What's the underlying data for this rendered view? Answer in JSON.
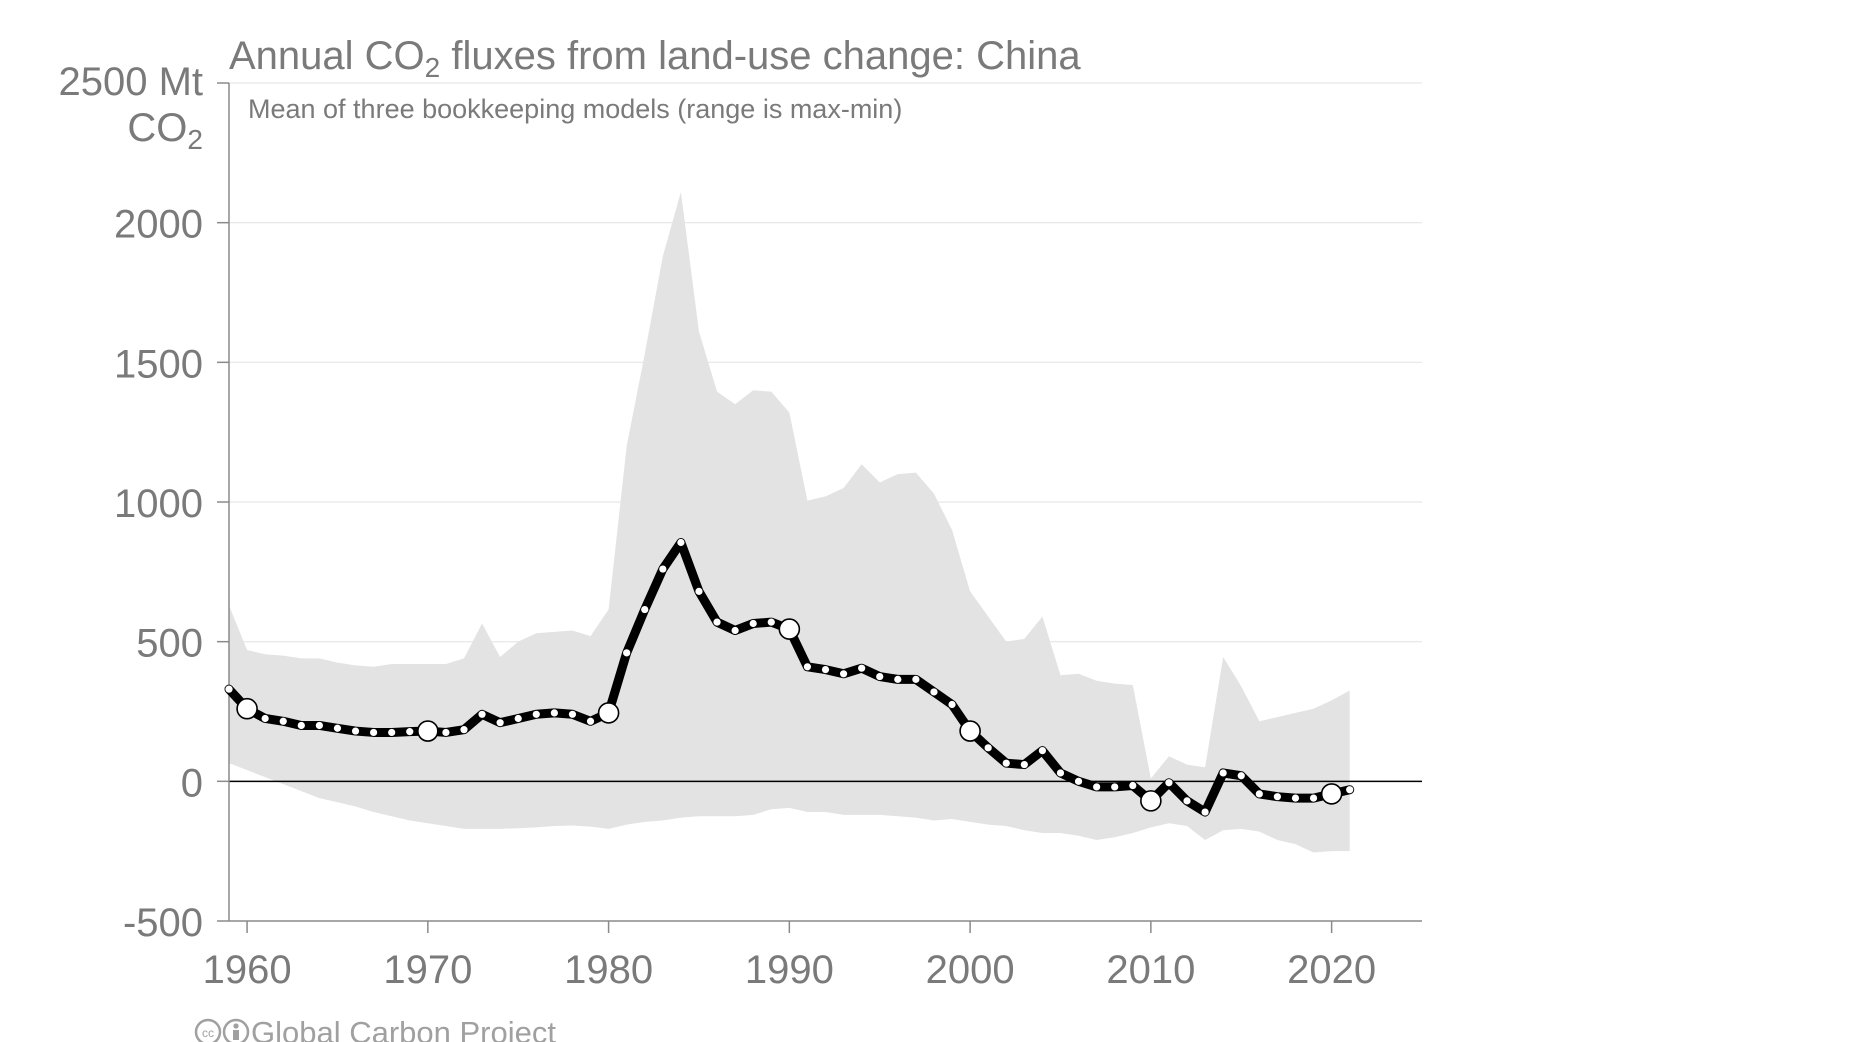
{
  "chart_data": {
    "type": "area",
    "title_before": "Annual CO",
    "title_sub": "2",
    "title_after": " fluxes from land-use change: China",
    "subtitle": "Mean of three bookkeeping models (range is max-min)",
    "ylabel_line1": "2500 Mt",
    "ylabel_line2": "CO",
    "ylabel_sub": "2",
    "xlim": [
      1959,
      2025
    ],
    "ylim": [
      -500,
      2500
    ],
    "yticks": [
      2000,
      1500,
      1000,
      500,
      0,
      -500
    ],
    "xticks": [
      1960,
      1970,
      1980,
      1990,
      2000,
      2010,
      2020
    ],
    "grid": true,
    "colors": {
      "mean": "#000000",
      "range": "#e3e3e3",
      "text": "#7a7a7a",
      "grid": "#e6e6e6"
    },
    "years": [
      1959,
      1960,
      1961,
      1962,
      1963,
      1964,
      1965,
      1966,
      1967,
      1968,
      1969,
      1970,
      1971,
      1972,
      1973,
      1974,
      1975,
      1976,
      1977,
      1978,
      1979,
      1980,
      1981,
      1982,
      1983,
      1984,
      1985,
      1986,
      1987,
      1988,
      1989,
      1990,
      1991,
      1992,
      1993,
      1994,
      1995,
      1996,
      1997,
      1998,
      1999,
      2000,
      2001,
      2002,
      2003,
      2004,
      2005,
      2006,
      2007,
      2008,
      2009,
      2010,
      2011,
      2012,
      2013,
      2014,
      2015,
      2016,
      2017,
      2018,
      2019,
      2020,
      2021
    ],
    "series": [
      {
        "name": "",
        "type": "line",
        "values": [
          330,
          260,
          225,
          215,
          200,
          200,
          190,
          180,
          175,
          175,
          178,
          180,
          175,
          185,
          240,
          210,
          225,
          240,
          245,
          240,
          215,
          245,
          460,
          615,
          760,
          855,
          680,
          570,
          540,
          565,
          570,
          545,
          410,
          400,
          385,
          405,
          375,
          365,
          365,
          320,
          275,
          180,
          120,
          65,
          60,
          110,
          30,
          0,
          -20,
          -20,
          -15,
          -70,
          -5,
          -70,
          -110,
          30,
          20,
          -45,
          -55,
          -60,
          -60,
          -45,
          -30
        ],
        "markers_large_years": [
          1960,
          1970,
          1980,
          1990,
          2000,
          2010,
          2020
        ]
      },
      {
        "name": "",
        "type": "range",
        "upper": [
          630,
          470,
          455,
          450,
          440,
          440,
          425,
          415,
          410,
          420,
          420,
          420,
          420,
          440,
          565,
          445,
          500,
          530,
          535,
          540,
          520,
          615,
          1200,
          1530,
          1880,
          2110,
          1610,
          1395,
          1350,
          1400,
          1395,
          1320,
          1005,
          1020,
          1050,
          1135,
          1070,
          1100,
          1105,
          1030,
          900,
          680,
          590,
          500,
          510,
          590,
          380,
          385,
          360,
          350,
          345,
          10,
          90,
          60,
          50,
          445,
          340,
          215,
          230,
          245,
          260,
          290,
          325
        ],
        "lower": [
          65,
          40,
          15,
          -10,
          -35,
          -60,
          -75,
          -90,
          -110,
          -125,
          -140,
          -150,
          -160,
          -170,
          -170,
          -170,
          -168,
          -165,
          -160,
          -158,
          -162,
          -170,
          -155,
          -145,
          -140,
          -130,
          -125,
          -125,
          -125,
          -120,
          -100,
          -95,
          -110,
          -110,
          -120,
          -120,
          -120,
          -125,
          -130,
          -140,
          -135,
          -145,
          -155,
          -160,
          -175,
          -185,
          -185,
          -195,
          -210,
          -200,
          -185,
          -165,
          -150,
          -160,
          -210,
          -175,
          -170,
          -180,
          -210,
          -225,
          -255,
          -250,
          -250
        ]
      }
    ]
  },
  "credit": {
    "icon_cc": "cc-icon",
    "icon_by": "by-icon",
    "text": "Global Carbon Project"
  }
}
